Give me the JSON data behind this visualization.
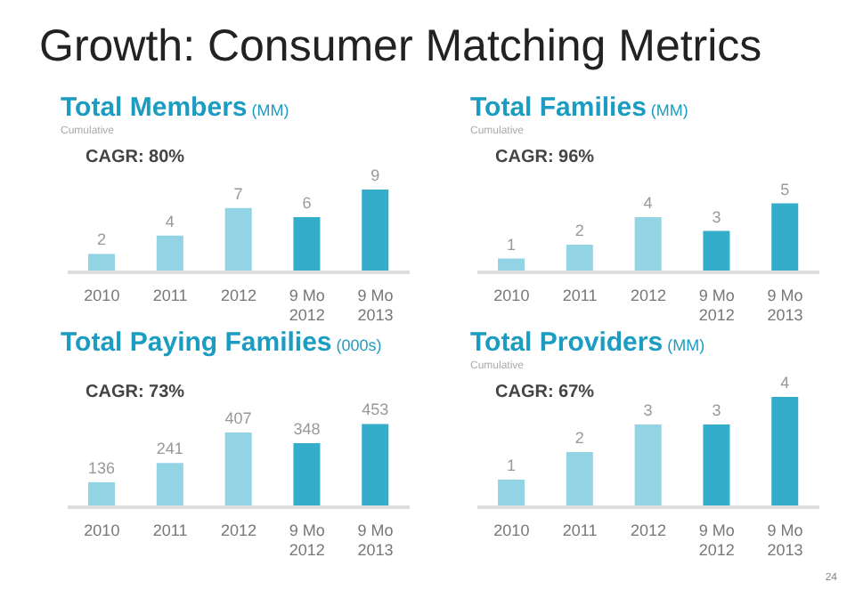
{
  "chart_data": [
    {
      "type": "other",
      "title": "Growth: Consumer Matching Metrics",
      "annotations": [
        "24"
      ]
    },
    {
      "type": "bar",
      "title": "Total Members (MM)",
      "subtitle": "Cumulative",
      "annotations": [
        "CAGR: 80%"
      ],
      "categories": [
        "2010",
        "2011",
        "2012",
        "9 Mo\n2012",
        "9 Mo\n2013"
      ],
      "values": [
        2,
        4,
        7,
        6,
        9
      ],
      "colors": [
        "#93d4e4",
        "#93d4e4",
        "#93d4e4",
        "#33adca",
        "#33adca"
      ],
      "data_labels": true
    },
    {
      "type": "bar",
      "title": "Total Families (MM)",
      "subtitle": "Cumulative",
      "annotations": [
        "CAGR: 96%"
      ],
      "categories": [
        "2010",
        "2011",
        "2012",
        "9 Mo\n2012",
        "9 Mo\n2013"
      ],
      "values": [
        1,
        2,
        4,
        3,
        5
      ],
      "colors": [
        "#93d4e4",
        "#93d4e4",
        "#93d4e4",
        "#33adca",
        "#33adca"
      ],
      "data_labels": true
    },
    {
      "type": "bar",
      "title": "Total Paying Families (000s)",
      "annotations": [
        "CAGR: 73%"
      ],
      "categories": [
        "2010",
        "2011",
        "2012",
        "9 Mo\n2012",
        "9 Mo\n2013"
      ],
      "values": [
        136,
        241,
        407,
        348,
        453
      ],
      "colors": [
        "#93d4e4",
        "#93d4e4",
        "#93d4e4",
        "#33adca",
        "#33adca"
      ],
      "data_labels": true
    },
    {
      "type": "bar",
      "title": "Total Providers (MM)",
      "subtitle": "Cumulative",
      "annotations": [
        "CAGR: 67%"
      ],
      "categories": [
        "2010",
        "2011",
        "2012",
        "9 Mo\n2012",
        "9 Mo\n2013"
      ],
      "values": [
        1,
        2,
        3,
        3,
        4
      ],
      "colors": [
        "#93d4e4",
        "#93d4e4",
        "#93d4e4",
        "#33adca",
        "#33adca"
      ],
      "data_labels": true
    }
  ]
}
